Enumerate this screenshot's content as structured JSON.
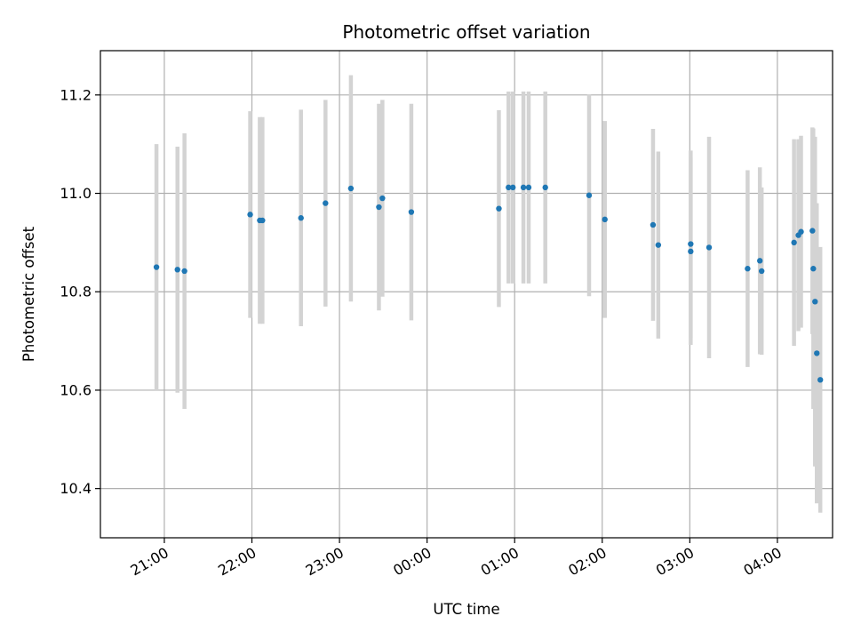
{
  "chart_data": {
    "type": "scatter",
    "title": "Photometric offset variation",
    "xlabel": "UTC time",
    "ylabel": "Photometric offset",
    "x_unit": "UTC time (hours relative to 00:00 of the night)",
    "xlim": [
      -3.73,
      4.63
    ],
    "ylim": [
      10.3,
      11.29
    ],
    "x_ticks": [
      {
        "value": -3,
        "label": "21:00"
      },
      {
        "value": -2,
        "label": "22:00"
      },
      {
        "value": -1,
        "label": "23:00"
      },
      {
        "value": 0,
        "label": "00:00"
      },
      {
        "value": 1,
        "label": "01:00"
      },
      {
        "value": 2,
        "label": "02:00"
      },
      {
        "value": 3,
        "label": "03:00"
      },
      {
        "value": 4,
        "label": "04:00"
      }
    ],
    "y_ticks": [
      {
        "value": 10.4,
        "label": "10.4"
      },
      {
        "value": 10.6,
        "label": "10.6"
      },
      {
        "value": 10.8,
        "label": "10.8"
      },
      {
        "value": 11.0,
        "label": "11.0"
      },
      {
        "value": 11.2,
        "label": "11.2"
      }
    ],
    "grid": true,
    "colors": {
      "point": "#1f77b4",
      "errorbar": "#d3d3d3",
      "grid": "#b0b0b0"
    },
    "points": [
      {
        "x": -3.09,
        "y": 10.85,
        "err": 0.25
      },
      {
        "x": -2.85,
        "y": 10.845,
        "err": 0.25
      },
      {
        "x": -2.77,
        "y": 10.842,
        "err": 0.28
      },
      {
        "x": -2.02,
        "y": 10.957,
        "err": 0.21
      },
      {
        "x": -1.91,
        "y": 10.945,
        "err": 0.21
      },
      {
        "x": -1.88,
        "y": 10.945,
        "err": 0.21
      },
      {
        "x": -1.44,
        "y": 10.95,
        "err": 0.22
      },
      {
        "x": -1.16,
        "y": 10.98,
        "err": 0.21
      },
      {
        "x": -0.87,
        "y": 11.01,
        "err": 0.23
      },
      {
        "x": -0.55,
        "y": 10.972,
        "err": 0.21
      },
      {
        "x": -0.51,
        "y": 10.99,
        "err": 0.2
      },
      {
        "x": -0.18,
        "y": 10.962,
        "err": 0.22
      },
      {
        "x": 0.82,
        "y": 10.969,
        "err": 0.2
      },
      {
        "x": 0.93,
        "y": 11.012,
        "err": 0.195
      },
      {
        "x": 0.98,
        "y": 11.012,
        "err": 0.195
      },
      {
        "x": 1.1,
        "y": 11.012,
        "err": 0.195
      },
      {
        "x": 1.16,
        "y": 11.012,
        "err": 0.195
      },
      {
        "x": 1.35,
        "y": 11.012,
        "err": 0.195
      },
      {
        "x": 1.85,
        "y": 10.996,
        "err": 0.205
      },
      {
        "x": 2.03,
        "y": 10.947,
        "err": 0.2
      },
      {
        "x": 2.58,
        "y": 10.936,
        "err": 0.195
      },
      {
        "x": 2.64,
        "y": 10.895,
        "err": 0.19
      },
      {
        "x": 3.01,
        "y": 10.897,
        "err": 0.19
      },
      {
        "x": 3.01,
        "y": 10.882,
        "err": 0.19
      },
      {
        "x": 3.22,
        "y": 10.89,
        "err": 0.225
      },
      {
        "x": 3.66,
        "y": 10.847,
        "err": 0.2
      },
      {
        "x": 3.8,
        "y": 10.863,
        "err": 0.19
      },
      {
        "x": 3.82,
        "y": 10.842,
        "err": 0.17
      },
      {
        "x": 4.19,
        "y": 10.9,
        "err": 0.21
      },
      {
        "x": 4.24,
        "y": 10.915,
        "err": 0.195
      },
      {
        "x": 4.27,
        "y": 10.922,
        "err": 0.195
      },
      {
        "x": 4.4,
        "y": 10.924,
        "err": 0.21
      },
      {
        "x": 4.41,
        "y": 10.847,
        "err": 0.285
      },
      {
        "x": 4.43,
        "y": 10.78,
        "err": 0.335
      },
      {
        "x": 4.45,
        "y": 10.675,
        "err": 0.305
      },
      {
        "x": 4.49,
        "y": 10.621,
        "err": 0.27
      }
    ]
  }
}
